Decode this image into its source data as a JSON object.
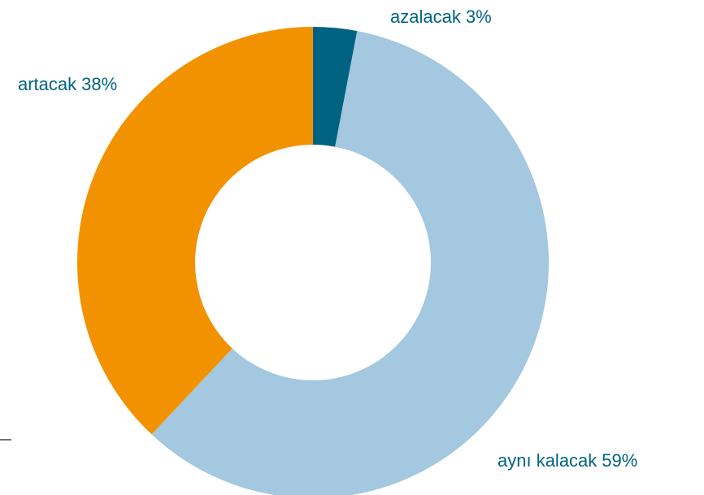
{
  "chart_data": {
    "type": "donut",
    "categories": [
      "azalacak",
      "aynı kalacak",
      "artacak"
    ],
    "values": [
      3,
      59,
      38
    ],
    "value_labels": [
      "3%",
      "59%",
      "38%"
    ],
    "colors": [
      "#006281",
      "#a3c8df",
      "#f39200"
    ]
  }
}
